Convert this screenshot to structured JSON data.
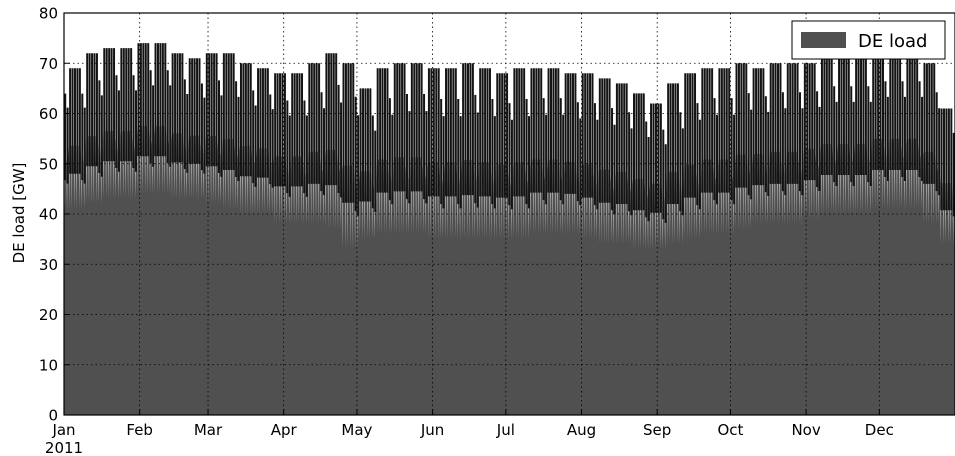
{
  "chart_data": {
    "type": "area",
    "ylabel": "DE load [GW]",
    "xlabel": "",
    "ylim": [
      0,
      80
    ],
    "yticks": [
      0,
      10,
      20,
      30,
      40,
      50,
      60,
      70,
      80
    ],
    "xlim": [
      "2011-01-01",
      "2011-12-31"
    ],
    "xticks": [
      {
        "date": "2011-01-01",
        "label": "Jan",
        "sublabel": "2011"
      },
      {
        "date": "2011-02-01",
        "label": "Feb"
      },
      {
        "date": "2011-03-01",
        "label": "Mar"
      },
      {
        "date": "2011-04-01",
        "label": "Apr"
      },
      {
        "date": "2011-05-01",
        "label": "May"
      },
      {
        "date": "2011-06-01",
        "label": "Jun"
      },
      {
        "date": "2011-07-01",
        "label": "Jul"
      },
      {
        "date": "2011-08-01",
        "label": "Aug"
      },
      {
        "date": "2011-09-01",
        "label": "Sep"
      },
      {
        "date": "2011-10-01",
        "label": "Oct"
      },
      {
        "date": "2011-11-01",
        "label": "Nov"
      },
      {
        "date": "2011-12-01",
        "label": "Dec"
      }
    ],
    "grid": true,
    "legend": {
      "placement": "top-right"
    },
    "series": [
      {
        "name": "DE load",
        "color": "#505050",
        "weekly_envelope": {
          "week_start": [
            "2011-01-03",
            "2011-01-10",
            "2011-01-17",
            "2011-01-24",
            "2011-01-31",
            "2011-02-07",
            "2011-02-14",
            "2011-02-21",
            "2011-02-28",
            "2011-03-07",
            "2011-03-14",
            "2011-03-21",
            "2011-03-28",
            "2011-04-04",
            "2011-04-11",
            "2011-04-18",
            "2011-04-25",
            "2011-05-02",
            "2011-05-09",
            "2011-05-16",
            "2011-05-23",
            "2011-05-30",
            "2011-06-06",
            "2011-06-13",
            "2011-06-20",
            "2011-06-27",
            "2011-07-04",
            "2011-07-11",
            "2011-07-18",
            "2011-07-25",
            "2011-08-01",
            "2011-08-08",
            "2011-08-15",
            "2011-08-22",
            "2011-08-29",
            "2011-09-05",
            "2011-09-12",
            "2011-09-19",
            "2011-09-26",
            "2011-10-03",
            "2011-10-10",
            "2011-10-17",
            "2011-10-24",
            "2011-10-31",
            "2011-11-07",
            "2011-11-14",
            "2011-11-21",
            "2011-11-28",
            "2011-12-05",
            "2011-12-12",
            "2011-12-19",
            "2011-12-26"
          ],
          "weekday_peak_gw": [
            69,
            72,
            73,
            73,
            74,
            74,
            72,
            71,
            72,
            72,
            70,
            69,
            68,
            68,
            70,
            72,
            70,
            65,
            69,
            70,
            70,
            69,
            69,
            70,
            69,
            68,
            69,
            69,
            69,
            68,
            68,
            67,
            66,
            64,
            62,
            66,
            68,
            69,
            69,
            70,
            69,
            70,
            70,
            70,
            71,
            71,
            71,
            72,
            72,
            72,
            70,
            61
          ],
          "night_min_gw": [
            41,
            42,
            43,
            43,
            44,
            44,
            43,
            43,
            42,
            41,
            40,
            40,
            38,
            38,
            38,
            37,
            33,
            35,
            36,
            36,
            36,
            35,
            35,
            35,
            35,
            35,
            35,
            36,
            36,
            36,
            35,
            34,
            34,
            33,
            33,
            34,
            35,
            36,
            36,
            37,
            38,
            38,
            38,
            39,
            40,
            40,
            40,
            41,
            41,
            41,
            38,
            34
          ]
        }
      }
    ]
  }
}
